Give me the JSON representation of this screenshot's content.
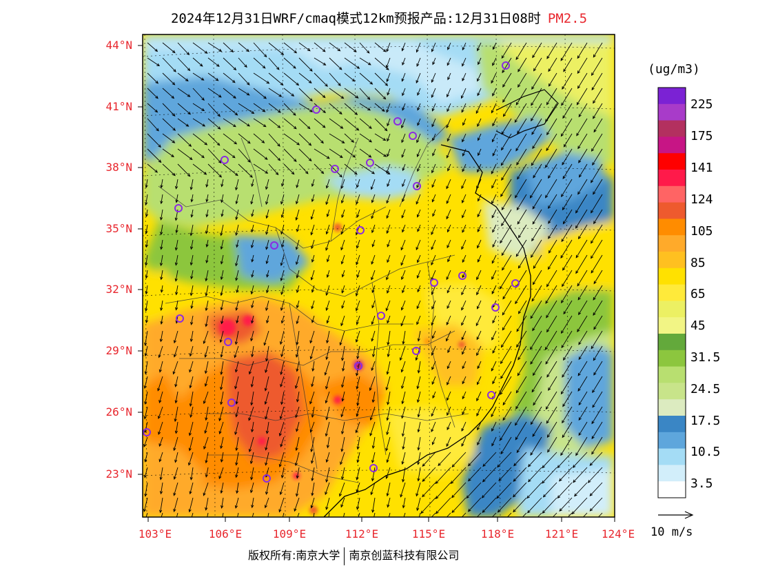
{
  "title": {
    "text": "2024年12月31日WRF/cmaq模式12km预报产品:12月31日08时",
    "pollutant": "PM2.5"
  },
  "latitude_labels": [
    "44°N",
    "41°N",
    "38°N",
    "35°N",
    "32°N",
    "29°N",
    "26°N",
    "23°N"
  ],
  "longitude_labels": [
    "103°E",
    "106°E",
    "109°E",
    "112°E",
    "115°E",
    "118°E",
    "121°E",
    "124°E"
  ],
  "colorbar": {
    "unit": "(ug/m3)",
    "labels": [
      "225",
      "175",
      "141",
      "124",
      "105",
      "85",
      "65",
      "45",
      "31.5",
      "24.5",
      "17.5",
      "10.5",
      "3.5"
    ],
    "colors": [
      "#7b22d4",
      "#a83bc9",
      "#b3305f",
      "#c71585",
      "#ff0000",
      "#ff1a4a",
      "#ff6464",
      "#ee5a2e",
      "#ff8c00",
      "#ffaa2a",
      "#ffc020",
      "#ffe100",
      "#ffea3a",
      "#ecf063",
      "#f2f585",
      "#63a93b",
      "#8cc63e",
      "#b8df70",
      "#c8e48a",
      "#dcebc0",
      "#3a86c5",
      "#5ea6dc",
      "#a4dcf5",
      "#d2eefa",
      "#ffffff"
    ]
  },
  "wind_reference": "10 m/s",
  "copyright": {
    "prefix": "版权所有:南京大学",
    "company": "南京创蓝科技有限公司"
  }
}
